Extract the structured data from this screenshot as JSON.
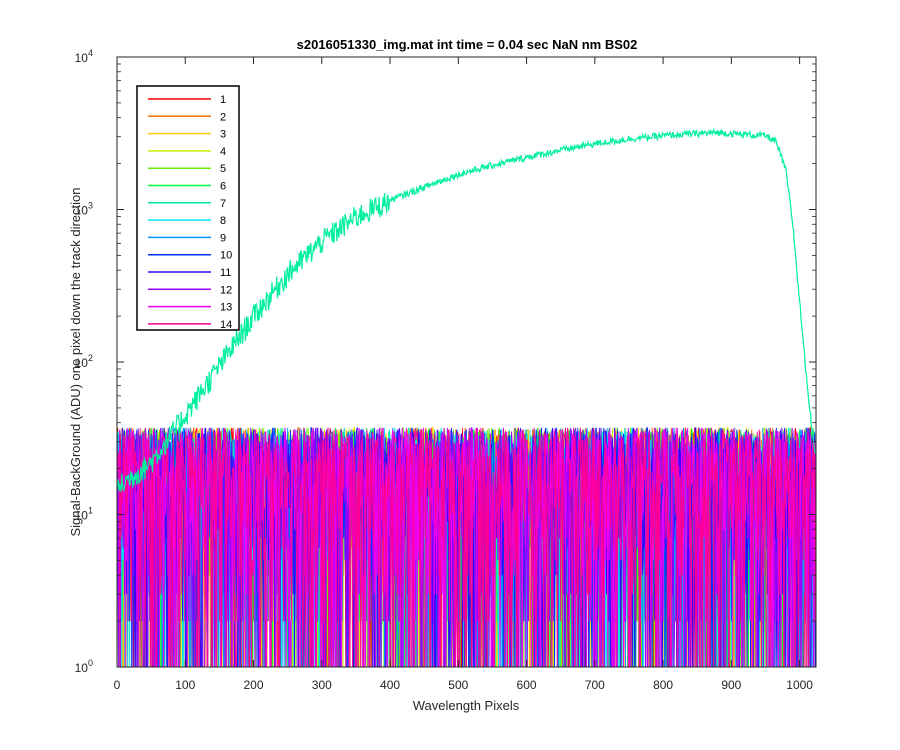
{
  "chart_data": {
    "type": "line",
    "title": "s2016051330_img.mat int time = 0.04 sec  NaN nm BS02",
    "xlabel": "Wavelength Pixels",
    "ylabel": "Signal-BackGround (ADU) one pixel down the track direction",
    "xlim": [
      0,
      1024
    ],
    "ylim": [
      1,
      10000
    ],
    "yscale": "log",
    "x_ticks": [
      "0",
      "100",
      "200",
      "300",
      "400",
      "500",
      "600",
      "700",
      "800",
      "900",
      "1000"
    ],
    "y_ticks": [
      {
        "base": "10",
        "exp": "0"
      },
      {
        "base": "10",
        "exp": "1"
      },
      {
        "base": "10",
        "exp": "2"
      },
      {
        "base": "10",
        "exp": "3"
      },
      {
        "base": "10",
        "exp": "4"
      }
    ],
    "grid": false,
    "legend_position": "top-left",
    "series": [
      {
        "name": "1",
        "color": "#ff0000",
        "profile": "noise"
      },
      {
        "name": "2",
        "color": "#ff6e00",
        "profile": "noise"
      },
      {
        "name": "3",
        "color": "#ffc800",
        "profile": "noise"
      },
      {
        "name": "4",
        "color": "#c8f000",
        "profile": "noise"
      },
      {
        "name": "5",
        "color": "#64f000",
        "profile": "noise"
      },
      {
        "name": "6",
        "color": "#00ff40",
        "profile": "noise"
      },
      {
        "name": "7",
        "color": "#00f0a0",
        "profile": "signal"
      },
      {
        "name": "8",
        "color": "#00e6f0",
        "profile": "noise"
      },
      {
        "name": "9",
        "color": "#0096ff",
        "profile": "noise"
      },
      {
        "name": "10",
        "color": "#0032ff",
        "profile": "noise"
      },
      {
        "name": "11",
        "color": "#3c00ff",
        "profile": "noise"
      },
      {
        "name": "12",
        "color": "#a000ff",
        "profile": "noise"
      },
      {
        "name": "13",
        "color": "#f000f0",
        "profile": "noise"
      },
      {
        "name": "14",
        "color": "#ff0096",
        "profile": "noise"
      }
    ],
    "signal_curve": {
      "x": [
        0,
        50,
        100,
        150,
        200,
        250,
        300,
        350,
        400,
        450,
        500,
        550,
        600,
        650,
        700,
        750,
        800,
        850,
        880,
        920,
        950,
        965,
        980,
        990,
        1000,
        1010,
        1020,
        1024
      ],
      "y": [
        15,
        22,
        45,
        95,
        200,
        380,
        620,
        900,
        1150,
        1400,
        1700,
        1950,
        2200,
        2450,
        2700,
        2900,
        3050,
        3150,
        3200,
        3100,
        3050,
        2800,
        1800,
        800,
        250,
        80,
        30,
        25
      ]
    },
    "noise_range": [
      1,
      40
    ]
  }
}
